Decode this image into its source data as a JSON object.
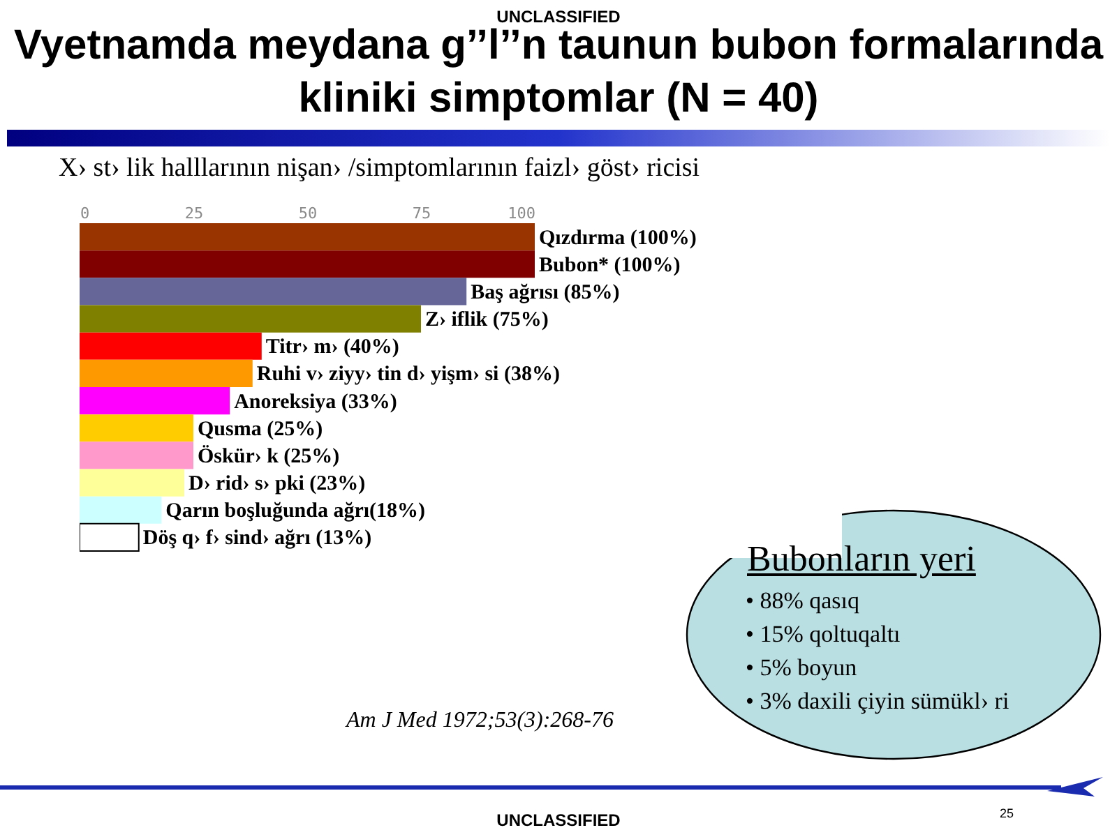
{
  "chart_data": {
    "type": "bar",
    "orientation": "horizontal",
    "title": "Vyetnamda meydana g’’l’’n taunun bubon formalarında kliniki simptomlar (N = 40)",
    "subtitle": "X› st› lik halllarının nişan› /simptomlarının faizl›  göst› ricisi",
    "categories": [
      "Qızdırma (100%)",
      "Bubon* (100%)",
      "Baş ağrısı (85%)",
      "Z› iflik (75%)",
      "Titr› m› (40%)",
      "Ruhi v› ziyy› tin d› yişm› si (38%)",
      "Anoreksiya (33%)",
      "Qusma (25%)",
      "Öskür› k (25%)",
      "D› rid›  s› pki (23%)",
      "Qarın boşluğunda ağrı(18%)",
      "Döş q› f› sind›  ağrı (13%)"
    ],
    "values": [
      100,
      100,
      85,
      75,
      40,
      38,
      33,
      25,
      25,
      23,
      18,
      13
    ],
    "colors": [
      "#993300",
      "#800000",
      "#666699",
      "#808000",
      "#ff0000",
      "#ff9900",
      "#ff00ff",
      "#ffcc00",
      "#ff99cc",
      "#ffff99",
      "#ccffff",
      "#ffffff"
    ],
    "xlim": [
      0,
      100
    ],
    "xticks": [
      0,
      25,
      50,
      75,
      100
    ],
    "grid": false,
    "annotations": [
      "UNCLASSIFIED",
      "Am J Med 1972;53(3):268-76",
      "Bubonların yeri",
      "• 88% qasıq",
      "• 15% qoltuqaltı",
      "• 5% boyun",
      "• 3% daxili çiyin sümükl› ri",
      "UNCLASSIFIED",
      "25"
    ]
  }
}
